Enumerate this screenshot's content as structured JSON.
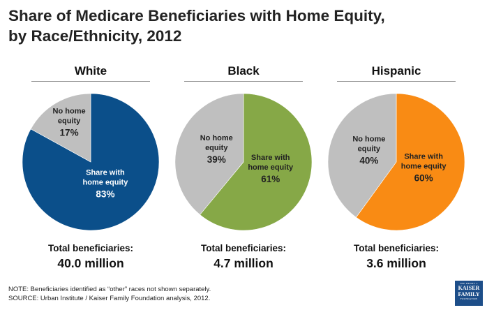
{
  "title_line1": "Share of Medicare Beneficiaries with Home Equity,",
  "title_line2": "by Race/Ethnicity, 2012",
  "chart_data": [
    {
      "type": "pie",
      "title": "White",
      "slices": [
        {
          "name": "Share with home equity",
          "label_line1": "Share with",
          "label_line2": "home equity",
          "value": 83,
          "value_label": "83%",
          "color": "#0b4f8a",
          "text_color": "#ffffff"
        },
        {
          "name": "No home equity",
          "label_line1": "No home",
          "label_line2": "equity",
          "value": 17,
          "value_label": "17%",
          "color": "#bfbfbf",
          "text_color": "#222222"
        }
      ],
      "total_label": "Total beneficiaries:",
      "total_value": "40.0 million"
    },
    {
      "type": "pie",
      "title": "Black",
      "slices": [
        {
          "name": "Share with home equity",
          "label_line1": "Share with",
          "label_line2": "home equity",
          "value": 61,
          "value_label": "61%",
          "color": "#86a847",
          "text_color": "#222222"
        },
        {
          "name": "No home equity",
          "label_line1": "No home",
          "label_line2": "equity",
          "value": 39,
          "value_label": "39%",
          "color": "#bfbfbf",
          "text_color": "#222222"
        }
      ],
      "total_label": "Total beneficiaries:",
      "total_value": "4.7 million"
    },
    {
      "type": "pie",
      "title": "Hispanic",
      "slices": [
        {
          "name": "Share with home equity",
          "label_line1": "Share with",
          "label_line2": "home equity",
          "value": 60,
          "value_label": "60%",
          "color": "#f98b14",
          "text_color": "#222222"
        },
        {
          "name": "No home equity",
          "label_line1": "No home",
          "label_line2": "equity",
          "value": 40,
          "value_label": "40%",
          "color": "#bfbfbf",
          "text_color": "#222222"
        }
      ],
      "total_label": "Total beneficiaries:",
      "total_value": "3.6 million"
    }
  ],
  "footer": {
    "note": "NOTE: Beneficiaries identified as “other” races not shown separately.",
    "source": "SOURCE: Urban Institute / Kaiser Family Foundation analysis, 2012."
  },
  "logo": {
    "line1": "THE HENRY J.",
    "line2": "KAISER",
    "line3": "FAMILY",
    "line4": "FOUNDATION"
  }
}
